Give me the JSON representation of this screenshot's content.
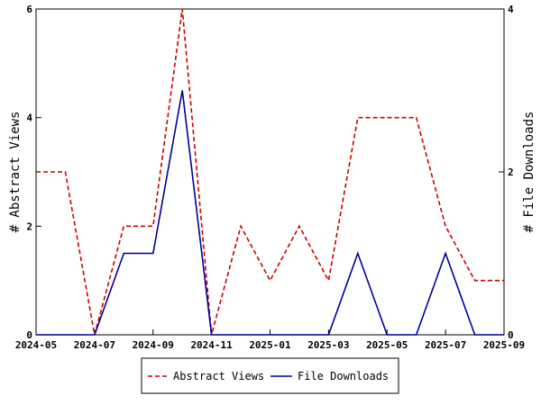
{
  "chart_data": {
    "type": "line",
    "x": [
      "2024-05",
      "2024-06",
      "2024-07",
      "2024-08",
      "2024-09",
      "2024-10",
      "2024-11",
      "2024-12",
      "2025-01",
      "2025-02",
      "2025-03",
      "2025-04",
      "2025-05",
      "2025-06",
      "2025-07",
      "2025-08",
      "2025-09"
    ],
    "x_ticks": [
      "2024-05",
      "2024-07",
      "2024-09",
      "2024-11",
      "2025-01",
      "2025-03",
      "2025-05",
      "2025-07",
      "2025-09"
    ],
    "series": [
      {
        "name": "Abstract Views",
        "axis": "left",
        "color": "#cc0000",
        "dash": "dashed",
        "values": [
          3,
          3,
          0,
          2,
          2,
          6,
          0,
          2,
          1,
          2,
          1,
          4,
          4,
          4,
          2,
          1,
          1
        ]
      },
      {
        "name": "File Downloads",
        "axis": "right",
        "color": "#000099",
        "dash": "solid",
        "values": [
          0,
          0,
          0,
          1,
          1,
          3,
          0,
          0,
          0,
          0,
          0,
          1,
          0,
          0,
          1,
          0,
          0
        ]
      }
    ],
    "ylabel": "# Abstract Views",
    "y2label": "# File Downloads",
    "ylim": [
      0,
      6
    ],
    "y2lim": [
      0,
      4
    ],
    "y_ticks": [
      0,
      2,
      4,
      6
    ],
    "y2_ticks": [
      0,
      2,
      4
    ],
    "grid": false,
    "legend_position": "bottom-center"
  }
}
